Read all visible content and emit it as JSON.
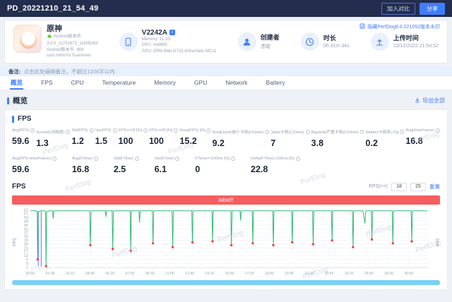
{
  "topbar": {
    "title": "PD_20221210_21_54_49",
    "compare_button": "加入对比",
    "share_button": "分享"
  },
  "header": {
    "game": {
      "name": "原神",
      "version_label": "Android版本名:",
      "version_value": "3.3.0_11741873_11806263",
      "build": "Android版本号: 469",
      "package": "com.miHoYo.Yuanshen"
    },
    "device": {
      "model": "V2242A",
      "memory": "Memory: 11.1G",
      "cpu": "CPU: mt6985",
      "gpu": "GPU: ARM Mali-G715-Immortalis MC11"
    },
    "creator": {
      "label": "创建者",
      "value": "漂城"
    },
    "duration": {
      "label": "时长",
      "value": "0h 31m 34s"
    },
    "upload": {
      "label": "上传时间",
      "value": "10/12/2022 21:54:52"
    },
    "watermark_note": "隐藏PerfDog8.0.221052版本水印"
  },
  "note": {
    "label": "备注:",
    "text": "点击此处编辑备注，不超过1200字以内"
  },
  "tabs": [
    {
      "label": "概览",
      "active": true
    },
    {
      "label": "FPS",
      "active": false
    },
    {
      "label": "CPU",
      "active": false
    },
    {
      "label": "Temperature",
      "active": false
    },
    {
      "label": "Memory",
      "active": false
    },
    {
      "label": "GPU",
      "active": false
    },
    {
      "label": "Network",
      "active": false
    },
    {
      "label": "Battery",
      "active": false
    }
  ],
  "overview": {
    "title": "概览",
    "export_all": "导出全部"
  },
  "fps_panel": {
    "title": "FPS",
    "metrics_row1": [
      {
        "label": "Avg(FPS)",
        "value": "59.6"
      },
      {
        "label": "Smooth(流畅度)",
        "value": "1.3"
      },
      {
        "label": "Std(FPS)",
        "value": "1.2"
      },
      {
        "label": "Var(FPS)",
        "value": "1.5"
      },
      {
        "label": "FPS>=18 [%]",
        "value": "100"
      },
      {
        "label": "FPS>=25 [%]",
        "value": "100"
      },
      {
        "label": "Drop(FPS) [/h]",
        "value": "15.2"
      },
      {
        "label": "SmallJank(微小卡顿)(/10min)",
        "value": "9.2"
      },
      {
        "label": "Jank(卡顿)(/10min)",
        "value": "7"
      },
      {
        "label": "BigJank(严重卡顿)(/10min)",
        "value": "3.8"
      },
      {
        "label": "Stutter(卡顿率) [%]",
        "value": "0.2"
      },
      {
        "label": "Avg(InterFrame)",
        "value": "16.8"
      }
    ],
    "metrics_row2": [
      {
        "label": "Avg(FPS+InterFrame)",
        "value": "59.6"
      },
      {
        "label": "Avg(FTime)",
        "value": "16.8"
      },
      {
        "label": "Std(FTime)",
        "value": "2.5"
      },
      {
        "label": "Var(FTime)",
        "value": "6.1"
      },
      {
        "label": "FTime>=100ms [%]",
        "value": "0"
      },
      {
        "label": "Delta(FTime)>100ms [/h]",
        "value": "22.8"
      }
    ]
  },
  "chart_controls": {
    "title": "FPS",
    "threshold_label": "FPS(>=)",
    "threshold1": "18",
    "threshold2": "25",
    "reset": "重置"
  },
  "banner": {
    "text": "label!!",
    "color": "#f55e5e"
  },
  "watermark": "PerfDog",
  "colors": {
    "accent": "#3f7dff",
    "topbar_bg": "#232d4d",
    "banner_red": "#f55e5e",
    "fps_line_green": "#1db36a",
    "jank_dot_red": "#f5433f",
    "brush_cyan": "#79d1f5",
    "note_strip_blue": "#e7f0fe"
  },
  "chart_data": {
    "type": "line",
    "title": "FPS",
    "ylabel": "FPS",
    "ylabel_right": "Jank",
    "ylim": [
      0,
      62
    ],
    "yticks": [
      1,
      5,
      9,
      13,
      17,
      21,
      25,
      29,
      33,
      37,
      41,
      45,
      49,
      53,
      57,
      61
    ],
    "x_total_seconds": 1900,
    "xtick_interval_seconds": 95,
    "xtick_labels": [
      "00:00",
      "01:35",
      "03:10",
      "04:45",
      "06:20",
      "07:55",
      "09:30",
      "11:05",
      "12:40",
      "14:15",
      "15:50",
      "17:25",
      "19:00",
      "20:35",
      "22:10",
      "23:45",
      "25:20",
      "26:55",
      "28:30",
      "30:05"
    ],
    "grid": true,
    "legend": false,
    "series": [
      {
        "name": "FPS",
        "color": "#1db36a",
        "points": [
          [
            0,
            60
          ],
          [
            20,
            60
          ],
          [
            30,
            60
          ],
          [
            33,
            59
          ],
          [
            35,
            9
          ],
          [
            38,
            59
          ],
          [
            48,
            60
          ],
          [
            62,
            60
          ],
          [
            70,
            60
          ],
          [
            73,
            58
          ],
          [
            75,
            2
          ],
          [
            78,
            59
          ],
          [
            90,
            60
          ],
          [
            106,
            60
          ],
          [
            109,
            52
          ],
          [
            112,
            60
          ],
          [
            150,
            60
          ],
          [
            200,
            60
          ],
          [
            245,
            60
          ],
          [
            283,
            60
          ],
          [
            286,
            24
          ],
          [
            290,
            60
          ],
          [
            330,
            60
          ],
          [
            358,
            60
          ],
          [
            361,
            54
          ],
          [
            364,
            60
          ],
          [
            390,
            60
          ],
          [
            393,
            20
          ],
          [
            396,
            60
          ],
          [
            432,
            60
          ],
          [
            476,
            60
          ],
          [
            479,
            18
          ],
          [
            482,
            60
          ],
          [
            518,
            60
          ],
          [
            521,
            48
          ],
          [
            524,
            60
          ],
          [
            560,
            60
          ],
          [
            582,
            60
          ],
          [
            585,
            26
          ],
          [
            588,
            60
          ],
          [
            630,
            60
          ],
          [
            676,
            60
          ],
          [
            679,
            22
          ],
          [
            682,
            60
          ],
          [
            722,
            60
          ],
          [
            770,
            60
          ],
          [
            773,
            27
          ],
          [
            776,
            60
          ],
          [
            820,
            60
          ],
          [
            866,
            60
          ],
          [
            869,
            28
          ],
          [
            872,
            60
          ],
          [
            915,
            60
          ],
          [
            956,
            60
          ],
          [
            959,
            24
          ],
          [
            962,
            60
          ],
          [
            1000,
            60
          ],
          [
            1003,
            50
          ],
          [
            1006,
            60
          ],
          [
            1058,
            60
          ],
          [
            1061,
            26
          ],
          [
            1064,
            60
          ],
          [
            1110,
            60
          ],
          [
            1156,
            60
          ],
          [
            1159,
            24
          ],
          [
            1162,
            60
          ],
          [
            1205,
            60
          ],
          [
            1246,
            60
          ],
          [
            1249,
            27
          ],
          [
            1252,
            60
          ],
          [
            1296,
            60
          ],
          [
            1346,
            60
          ],
          [
            1349,
            25
          ],
          [
            1352,
            60
          ],
          [
            1396,
            60
          ],
          [
            1436,
            60
          ],
          [
            1439,
            29
          ],
          [
            1442,
            60
          ],
          [
            1486,
            60
          ],
          [
            1536,
            60
          ],
          [
            1539,
            22
          ],
          [
            1542,
            60
          ],
          [
            1586,
            60
          ],
          [
            1596,
            47
          ],
          [
            1600,
            60
          ],
          [
            1626,
            60
          ],
          [
            1629,
            30
          ],
          [
            1632,
            60
          ],
          [
            1676,
            60
          ],
          [
            1726,
            60
          ],
          [
            1729,
            26
          ],
          [
            1732,
            60
          ],
          [
            1776,
            60
          ],
          [
            1816,
            60
          ],
          [
            1819,
            28
          ],
          [
            1822,
            60
          ],
          [
            1858,
            60
          ],
          [
            1894,
            60
          ]
        ]
      }
    ],
    "jank_markers": {
      "name": "Jank",
      "color": "#f5433f",
      "points": [
        [
          35,
          9
        ],
        [
          75,
          2
        ],
        [
          286,
          24
        ],
        [
          393,
          20
        ],
        [
          479,
          18
        ],
        [
          585,
          26
        ],
        [
          679,
          22
        ],
        [
          773,
          27
        ],
        [
          869,
          28
        ],
        [
          959,
          24
        ],
        [
          1061,
          26
        ],
        [
          1159,
          24
        ],
        [
          1249,
          27
        ],
        [
          1349,
          25
        ],
        [
          1439,
          29
        ],
        [
          1539,
          22
        ],
        [
          1629,
          30
        ],
        [
          1729,
          26
        ],
        [
          1819,
          28
        ]
      ]
    },
    "spikes": [
      {
        "t": 38,
        "v": 2,
        "color": "#4a7dff"
      },
      {
        "t": 52,
        "v": 1.5,
        "color": "#8a63f2"
      }
    ]
  }
}
